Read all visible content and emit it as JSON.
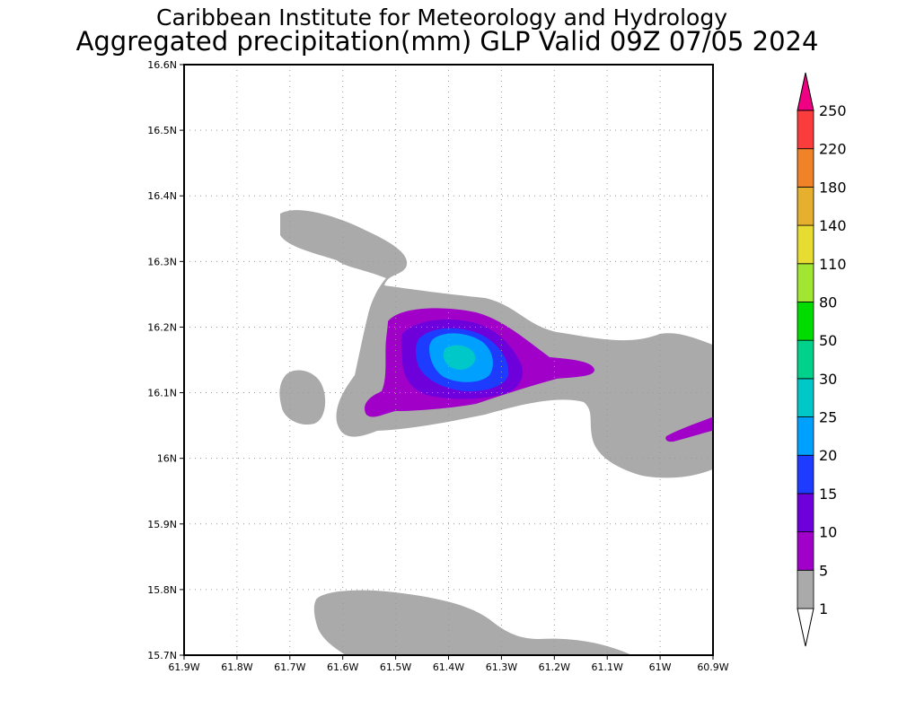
{
  "header": {
    "institute": "Caribbean Institute for Meteorology and Hydrology",
    "product": "Aggregated precipitation(mm) GLP Valid 09Z 07/05 2024"
  },
  "map": {
    "lon_range": [
      -61.9,
      -60.9
    ],
    "lat_range": [
      15.7,
      16.6
    ],
    "lon_ticks": [
      {
        "v": -61.9,
        "label": "61.9W"
      },
      {
        "v": -61.8,
        "label": "61.8W"
      },
      {
        "v": -61.7,
        "label": "61.7W"
      },
      {
        "v": -61.6,
        "label": "61.6W"
      },
      {
        "v": -61.5,
        "label": "61.5W"
      },
      {
        "v": -61.4,
        "label": "61.4W"
      },
      {
        "v": -61.3,
        "label": "61.3W"
      },
      {
        "v": -61.2,
        "label": "61.2W"
      },
      {
        "v": -61.1,
        "label": "61.1W"
      },
      {
        "v": -61.0,
        "label": "61W"
      },
      {
        "v": -60.9,
        "label": "60.9W"
      }
    ],
    "lat_ticks": [
      {
        "v": 16.6,
        "label": "16.6N"
      },
      {
        "v": 16.5,
        "label": "16.5N"
      },
      {
        "v": 16.4,
        "label": "16.4N"
      },
      {
        "v": 16.3,
        "label": "16.3N"
      },
      {
        "v": 16.2,
        "label": "16.2N"
      },
      {
        "v": 16.1,
        "label": "16.1N"
      },
      {
        "v": 16.0,
        "label": "16N"
      },
      {
        "v": 15.9,
        "label": "15.9N"
      },
      {
        "v": 15.8,
        "label": "15.8N"
      },
      {
        "v": 15.7,
        "label": "15.7N"
      }
    ],
    "grid": "dotted"
  },
  "colorbar": {
    "levels": [
      {
        "label": "1",
        "color": "#aaaaaa"
      },
      {
        "label": "5",
        "color": "#a000c8"
      },
      {
        "label": "10",
        "color": "#6e00dc"
      },
      {
        "label": "15",
        "color": "#1e3cff"
      },
      {
        "label": "20",
        "color": "#00a0ff"
      },
      {
        "label": "25",
        "color": "#00c8c8"
      },
      {
        "label": "30",
        "color": "#00d28c"
      },
      {
        "label": "50",
        "color": "#00dc00"
      },
      {
        "label": "80",
        "color": "#a0e632"
      },
      {
        "label": "110",
        "color": "#e6dc32"
      },
      {
        "label": "140",
        "color": "#e6af2d"
      },
      {
        "label": "180",
        "color": "#f08228"
      },
      {
        "label": "220",
        "color": "#fa3c3c"
      },
      {
        "label": "250",
        "color": "#f00082"
      }
    ]
  },
  "precip_colors": {
    "gt1": "#aaaaaa",
    "gt5": "#a000c8",
    "gt10": "#6e00dc",
    "gt15": "#1e3cff",
    "gt20": "#00a0ff",
    "gt25": "#00c8c8"
  }
}
